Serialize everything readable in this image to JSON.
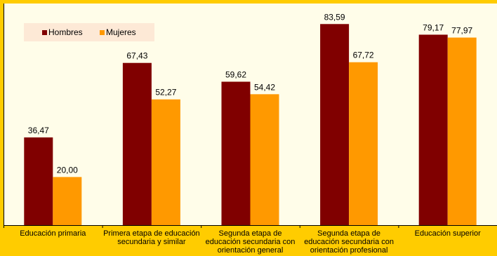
{
  "chart_data": {
    "type": "bar",
    "title": "",
    "xlabel": "",
    "ylabel": "",
    "ylim": [
      0,
      100
    ],
    "grid": false,
    "legend_position": "top-left",
    "categories": [
      [
        "Educación primaria"
      ],
      [
        "Primera etapa de educación",
        "secundaria y similar"
      ],
      [
        "Segunda etapa de",
        "educación secundaria con",
        "orientación general"
      ],
      [
        "Segunda etapa de",
        "educación secundaria con",
        "orientación profesional"
      ],
      [
        "Educación superior"
      ]
    ],
    "series": [
      {
        "name": "Hombres",
        "color": "#800000",
        "values": [
          36.47,
          67.43,
          59.62,
          83.59,
          79.17
        ],
        "labels": [
          "36,47",
          "67,43",
          "59,62",
          "83,59",
          "79,17"
        ]
      },
      {
        "name": "Mujeres",
        "color": "#ff9900",
        "values": [
          20.0,
          52.27,
          54.42,
          67.72,
          77.97
        ],
        "labels": [
          "20,00",
          "52,27",
          "54,42",
          "67,72",
          "77,97"
        ]
      }
    ]
  }
}
